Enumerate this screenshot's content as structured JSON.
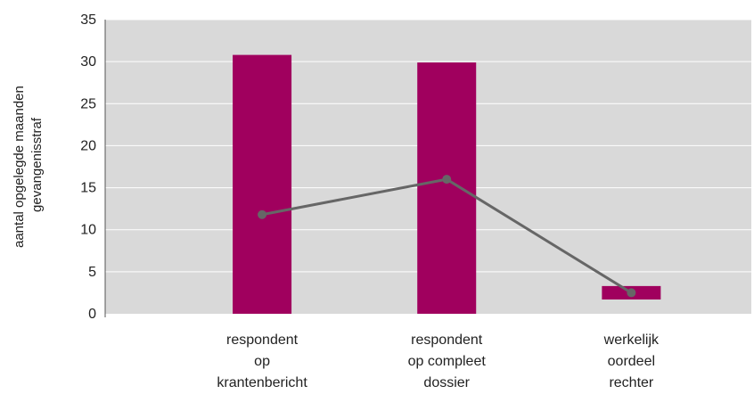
{
  "chart_data": {
    "type": "bar",
    "categories": [
      [
        "respondent",
        "op",
        "krantenbericht"
      ],
      [
        "respondent",
        "op compleet",
        "dossier"
      ],
      [
        "werkelijk",
        "oordeel",
        "rechter"
      ]
    ],
    "bars": [
      {
        "low": 0,
        "high": 30.8
      },
      {
        "low": 0,
        "high": 29.9
      },
      {
        "low": 1.7,
        "high": 3.3
      }
    ],
    "line": {
      "values": [
        11.8,
        16.0,
        2.5
      ]
    },
    "ylabel": [
      "aantal opgelegde maanden",
      "gevangenisstraf"
    ],
    "ylim": [
      0,
      35
    ],
    "yticks": [
      0,
      5,
      10,
      15,
      20,
      25,
      30,
      35
    ],
    "grid": true,
    "colors": {
      "bar": "#a0005e",
      "line": "#666666",
      "plot_bg": "#d9d9d9",
      "grid": "#ffffff"
    }
  }
}
